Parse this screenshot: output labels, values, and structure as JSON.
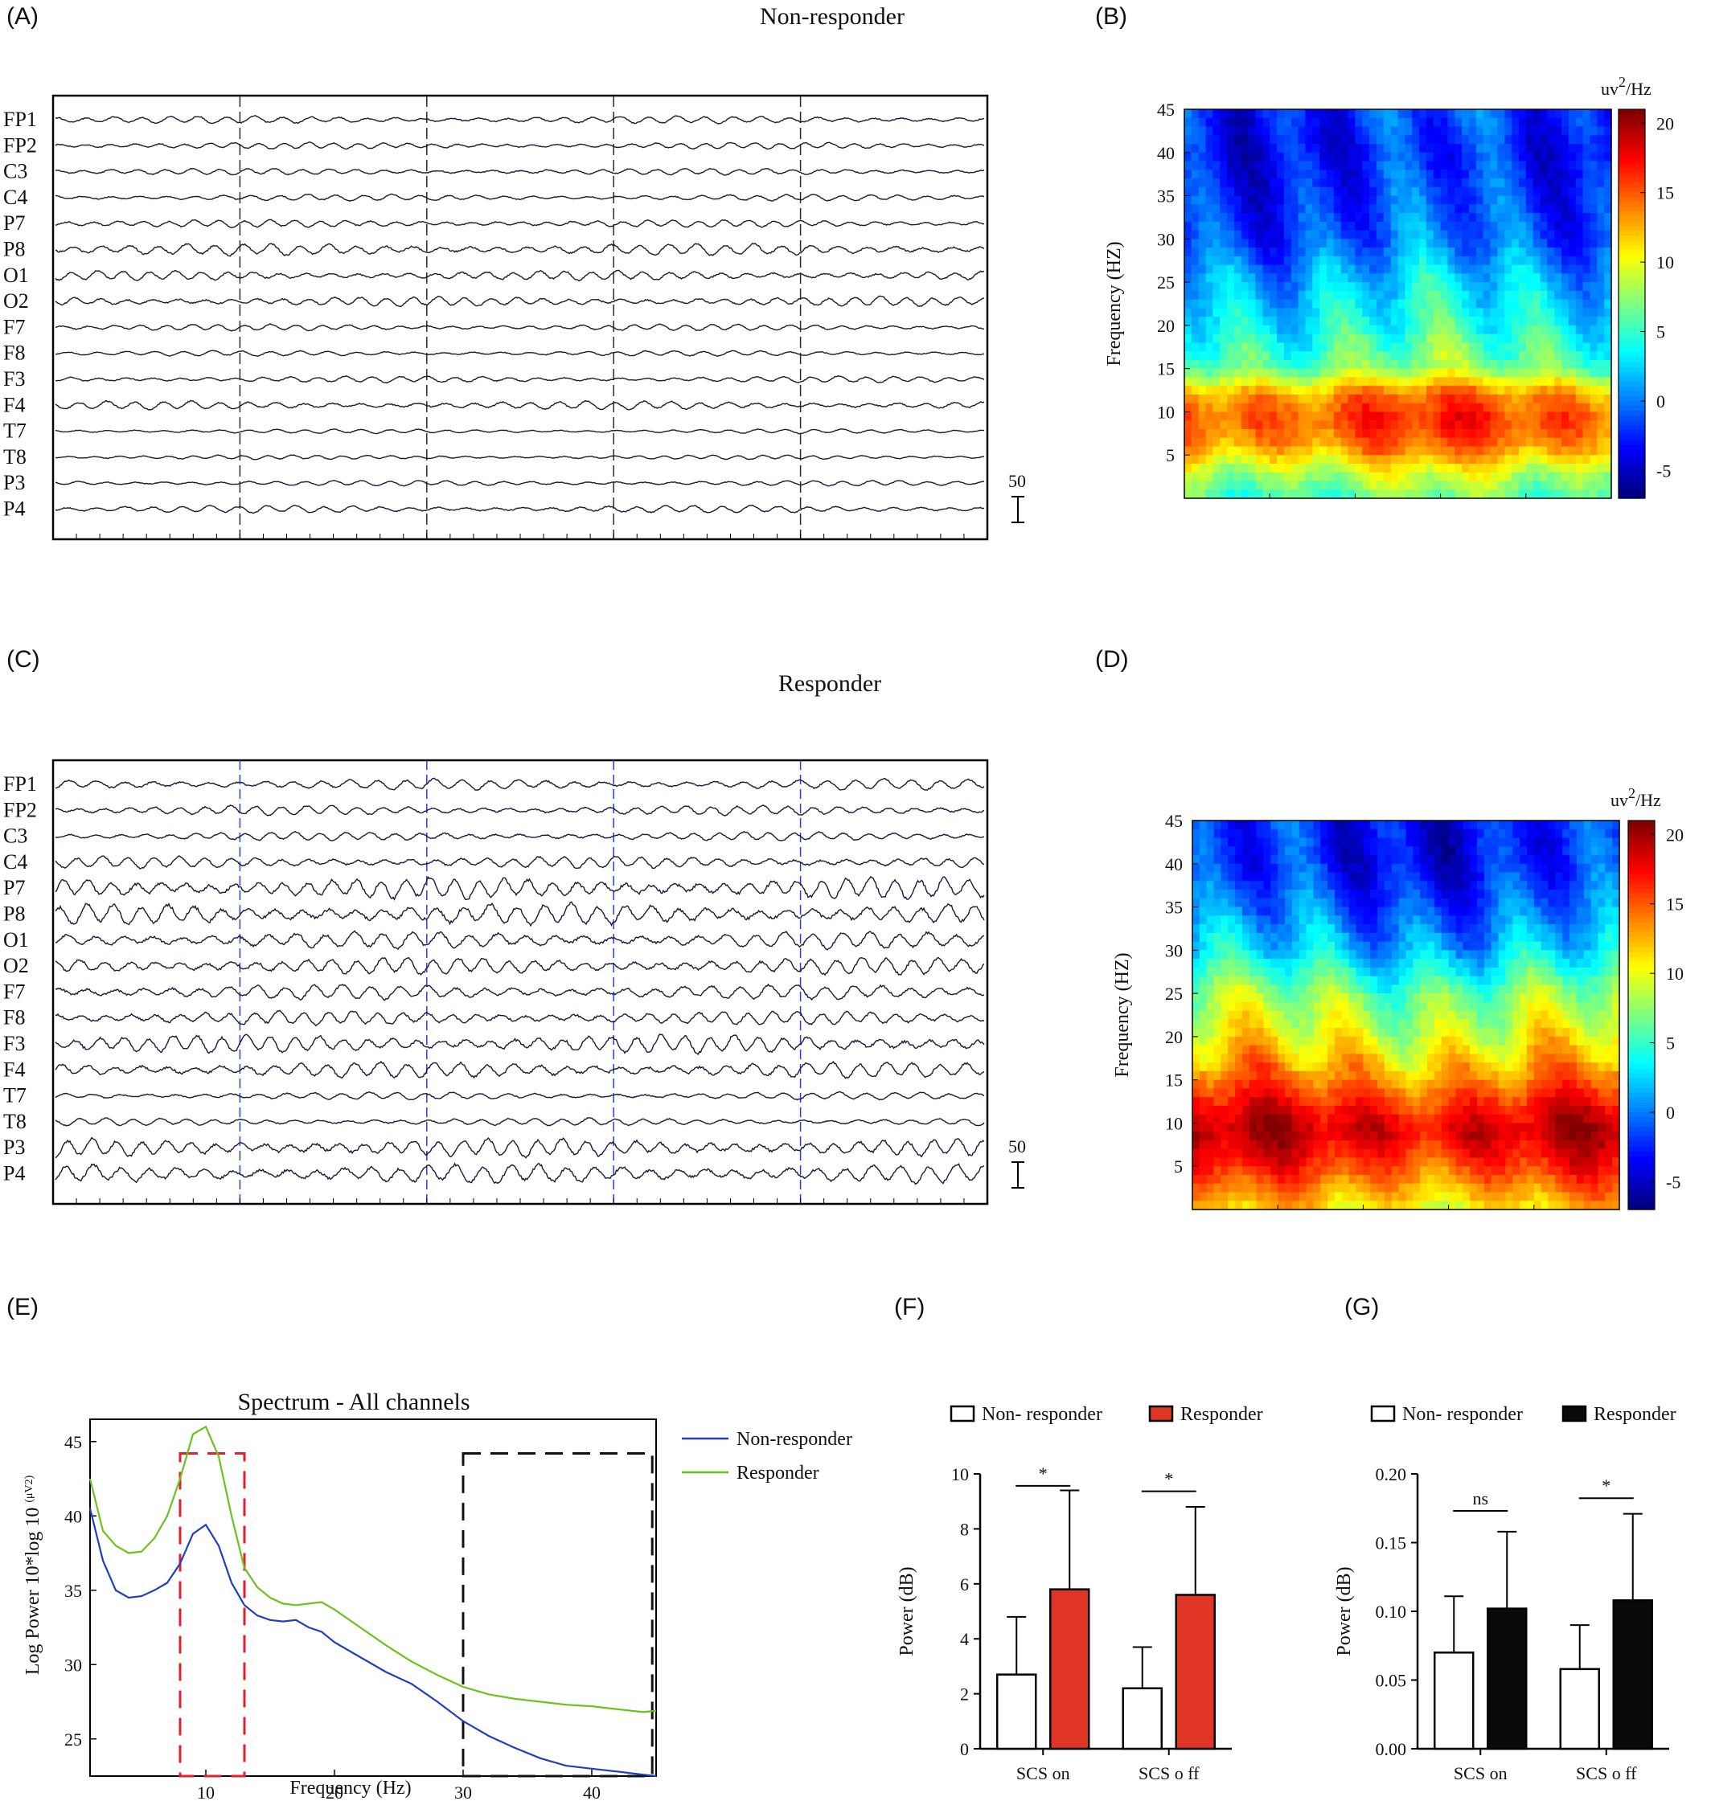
{
  "panels": {
    "A": {
      "letter": "(A)",
      "title": "Non-responder"
    },
    "B": {
      "letter": "(B)"
    },
    "C": {
      "letter": "(C)",
      "title": "Responder"
    },
    "D": {
      "letter": "(D)"
    },
    "E": {
      "letter": "(E)"
    },
    "F": {
      "letter": "(F)"
    },
    "G": {
      "letter": "(G)"
    }
  },
  "eeg": {
    "channels": [
      "FP1",
      "FP2",
      "C3",
      "C4",
      "P7",
      "P8",
      "O1",
      "O2",
      "F7",
      "F8",
      "F3",
      "F4",
      "T7",
      "T8",
      "P3",
      "P4"
    ],
    "scale_label": "50",
    "nonresponder_amplitude": [
      0.35,
      0.3,
      0.3,
      0.3,
      0.35,
      0.55,
      0.45,
      0.45,
      0.3,
      0.25,
      0.3,
      0.4,
      0.2,
      0.2,
      0.25,
      0.35
    ],
    "responder_amplitude": [
      0.5,
      0.45,
      0.4,
      0.55,
      1.0,
      1.0,
      0.8,
      0.8,
      0.7,
      0.65,
      0.85,
      0.75,
      0.35,
      0.35,
      0.85,
      0.9
    ],
    "colors": {
      "trace": "#1a1a3a",
      "divider": "#2b2b2b",
      "divider_responder": "#2a3fd6"
    }
  },
  "spectrogram": {
    "yticks": [
      "45",
      "40",
      "35",
      "30",
      "25",
      "20",
      "15",
      "10",
      "5"
    ],
    "ylabel": "Frequency (HZ)",
    "colorbar_ticks": [
      "20",
      "15",
      "10",
      "5",
      "0",
      "-5"
    ],
    "colorbar_unit_prefix": "uv",
    "colorbar_unit_sup": "2",
    "colorbar_unit_suffix": "/Hz",
    "color_range": [
      -7,
      21
    ],
    "nonresponder_profile": [
      {
        "f": 0,
        "v": 6
      },
      {
        "f": 3,
        "v": 9
      },
      {
        "f": 6,
        "v": 14
      },
      {
        "f": 9,
        "v": 16
      },
      {
        "f": 12,
        "v": 14
      },
      {
        "f": 15,
        "v": 7
      },
      {
        "f": 20,
        "v": 4
      },
      {
        "f": 25,
        "v": 2
      },
      {
        "f": 30,
        "v": -1
      },
      {
        "f": 35,
        "v": -2
      },
      {
        "f": 40,
        "v": -3
      },
      {
        "f": 45,
        "v": -2
      }
    ],
    "responder_profile": [
      {
        "f": 0,
        "v": 11
      },
      {
        "f": 3,
        "v": 14
      },
      {
        "f": 6,
        "v": 17
      },
      {
        "f": 9,
        "v": 19
      },
      {
        "f": 12,
        "v": 17
      },
      {
        "f": 15,
        "v": 14
      },
      {
        "f": 20,
        "v": 10
      },
      {
        "f": 25,
        "v": 7
      },
      {
        "f": 30,
        "v": 2
      },
      {
        "f": 35,
        "v": -1
      },
      {
        "f": 40,
        "v": -3
      },
      {
        "f": 45,
        "v": -3
      }
    ]
  },
  "chart_data": [
    {
      "type": "line",
      "title": "Spectrum - All channels",
      "xlabel": "Frequency (Hz)",
      "ylabel_main": "Log Power 10*log 10",
      "ylabel_unit": "(μV2)",
      "xlim": [
        1,
        45
      ],
      "ylim": [
        22.5,
        46.5
      ],
      "xticks": [
        "10",
        "20",
        "30",
        "40"
      ],
      "yticks": [
        "25",
        "30",
        "35",
        "40",
        "45"
      ],
      "series": [
        {
          "name": "Non-responder",
          "color": "#1f3fbf",
          "x": [
            1,
            2,
            3,
            4,
            5,
            6,
            7,
            8,
            9,
            10,
            11,
            12,
            13,
            14,
            15,
            16,
            17,
            18,
            19,
            20,
            22,
            24,
            26,
            28,
            30,
            32,
            34,
            36,
            38,
            40,
            42,
            44,
            45
          ],
          "y": [
            40.5,
            37,
            35,
            34.5,
            34.6,
            35,
            35.5,
            36.8,
            38.8,
            39.4,
            38,
            35.5,
            34,
            33.3,
            33,
            32.9,
            33,
            32.5,
            32.2,
            31.5,
            30.5,
            29.5,
            28.7,
            27.5,
            26.2,
            25.2,
            24.4,
            23.7,
            23.2,
            23,
            22.8,
            22.6,
            22.5
          ]
        },
        {
          "name": "Responder",
          "color": "#6cc21c",
          "x": [
            1,
            2,
            3,
            4,
            5,
            6,
            7,
            8,
            9,
            10,
            11,
            12,
            13,
            14,
            15,
            16,
            17,
            18,
            19,
            20,
            22,
            24,
            26,
            28,
            30,
            32,
            34,
            36,
            38,
            40,
            42,
            44,
            45
          ],
          "y": [
            42.5,
            39,
            38,
            37.5,
            37.6,
            38.5,
            40,
            42.5,
            45.5,
            46,
            44,
            40,
            36.5,
            35.2,
            34.5,
            34.1,
            34,
            34.1,
            34.2,
            33.7,
            32.5,
            31.3,
            30.2,
            29.3,
            28.5,
            28,
            27.7,
            27.5,
            27.3,
            27.2,
            27,
            26.8,
            26.9
          ]
        }
      ],
      "boxes": [
        {
          "x": [
            8,
            13
          ],
          "y": [
            22.5,
            44.2
          ],
          "color": "#e0202a"
        },
        {
          "x": [
            30,
            44.7
          ],
          "y": [
            22.5,
            44.2
          ],
          "color": "#111111"
        }
      ]
    },
    {
      "type": "bar",
      "ylabel": "Power (dB)",
      "ylim": [
        0,
        10
      ],
      "yticks": [
        "0",
        "2",
        "4",
        "6",
        "8",
        "10"
      ],
      "categories": [
        "SCS on",
        "SCS o ff"
      ],
      "series": [
        {
          "name": "Non- responder",
          "color": "#ffffff",
          "values": [
            2.7,
            2.2
          ],
          "errors": [
            2.1,
            1.5
          ]
        },
        {
          "name": "Responder",
          "color": "#e03525",
          "values": [
            5.8,
            5.6
          ],
          "errors": [
            3.6,
            3.2
          ]
        }
      ],
      "significance": [
        "*",
        "*"
      ]
    },
    {
      "type": "bar",
      "ylabel": "Power (dB)",
      "ylim": [
        0,
        0.2
      ],
      "yticks": [
        "0.00",
        "0.05",
        "0.10",
        "0.15",
        "0.20"
      ],
      "categories": [
        "SCS on",
        "SCS o ff"
      ],
      "series": [
        {
          "name": "Non- responder",
          "color": "#ffffff",
          "values": [
            0.07,
            0.058
          ],
          "errors": [
            0.041,
            0.032
          ]
        },
        {
          "name": "Responder",
          "color": "#0a0a0a",
          "values": [
            0.102,
            0.108
          ],
          "errors": [
            0.056,
            0.063
          ]
        }
      ],
      "significance": [
        "ns",
        "*"
      ]
    }
  ]
}
